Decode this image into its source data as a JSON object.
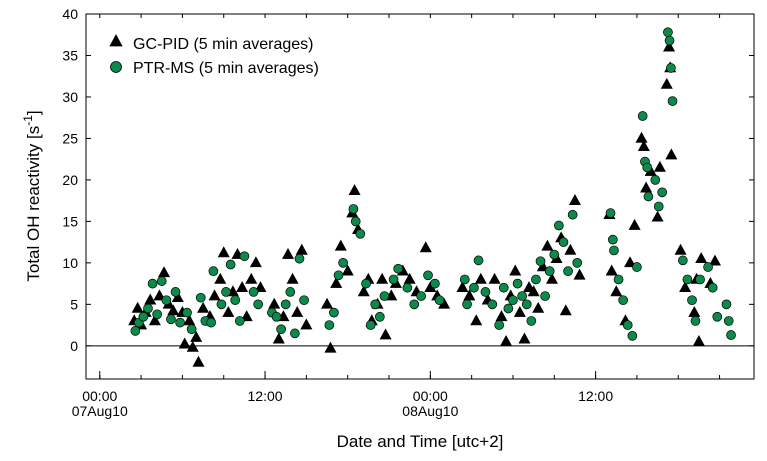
{
  "chart_data": {
    "type": "scatter",
    "xlabel": "Date and Time [utc+2]",
    "ylabel": "Total OH reactivity [s",
    "ylabel_sup": "-1",
    "ylabel_end": "]",
    "xlim": [
      "2010-08-06 23:00",
      "2010-08-08 23:30"
    ],
    "ylim": [
      -4,
      40
    ],
    "y_ticks": [
      0,
      5,
      10,
      15,
      20,
      25,
      30,
      35,
      40
    ],
    "x_ticks": [
      {
        "t": "2010-08-07 00:00",
        "label": "00:00",
        "sublabel": "07Aug10"
      },
      {
        "t": "2010-08-07 12:00",
        "label": "12:00",
        "sublabel": ""
      },
      {
        "t": "2010-08-08 00:00",
        "label": "00:00",
        "sublabel": "08Aug10"
      },
      {
        "t": "2010-08-08 12:00",
        "label": "12:00",
        "sublabel": ""
      }
    ],
    "zero_line": true,
    "grid": false,
    "legend_position": "top-left",
    "series": [
      {
        "name": "GC-PID (5 min averages)",
        "marker": "triangle",
        "color": "#000000",
        "points": [
          [
            "2010-08-07 02:30",
            3.0
          ],
          [
            "2010-08-07 02:45",
            4.5
          ],
          [
            "2010-08-07 03:00",
            2.5
          ],
          [
            "2010-08-07 03:20",
            4.0
          ],
          [
            "2010-08-07 03:40",
            5.5
          ],
          [
            "2010-08-07 04:00",
            3.0
          ],
          [
            "2010-08-07 04:20",
            6.0
          ],
          [
            "2010-08-07 04:40",
            8.8
          ],
          [
            "2010-08-07 05:00",
            5.0
          ],
          [
            "2010-08-07 05:20",
            4.2
          ],
          [
            "2010-08-07 05:40",
            5.8
          ],
          [
            "2010-08-07 06:00",
            4.0
          ],
          [
            "2010-08-07 06:10",
            0.2
          ],
          [
            "2010-08-07 06:30",
            3.0
          ],
          [
            "2010-08-07 06:45",
            -0.2
          ],
          [
            "2010-08-07 07:00",
            1.0
          ],
          [
            "2010-08-07 07:10",
            -2.0
          ],
          [
            "2010-08-07 07:30",
            4.5
          ],
          [
            "2010-08-07 08:00",
            3.5
          ],
          [
            "2010-08-07 08:20",
            6.0
          ],
          [
            "2010-08-07 08:45",
            8.0
          ],
          [
            "2010-08-07 09:00",
            11.2
          ],
          [
            "2010-08-07 09:20",
            4.0
          ],
          [
            "2010-08-07 09:40",
            6.5
          ],
          [
            "2010-08-07 10:00",
            11.0
          ],
          [
            "2010-08-07 10:20",
            7.0
          ],
          [
            "2010-08-07 10:40",
            3.5
          ],
          [
            "2010-08-07 11:00",
            8.0
          ],
          [
            "2010-08-07 11:20",
            10.0
          ],
          [
            "2010-08-07 11:40",
            7.0
          ],
          [
            "2010-08-07 12:40",
            5.0
          ],
          [
            "2010-08-07 13:00",
            0.8
          ],
          [
            "2010-08-07 13:20",
            3.5
          ],
          [
            "2010-08-07 13:40",
            11.0
          ],
          [
            "2010-08-07 14:00",
            8.0
          ],
          [
            "2010-08-07 14:20",
            4.0
          ],
          [
            "2010-08-07 14:40",
            11.5
          ],
          [
            "2010-08-07 15:00",
            2.5
          ],
          [
            "2010-08-07 16:30",
            5.0
          ],
          [
            "2010-08-07 16:45",
            -0.3
          ],
          [
            "2010-08-07 17:10",
            7.5
          ],
          [
            "2010-08-07 17:30",
            12.0
          ],
          [
            "2010-08-07 18:00",
            9.0
          ],
          [
            "2010-08-07 18:20",
            16.0
          ],
          [
            "2010-08-07 18:30",
            18.7
          ],
          [
            "2010-08-07 18:45",
            14.0
          ],
          [
            "2010-08-07 19:10",
            6.5
          ],
          [
            "2010-08-07 19:30",
            8.0
          ],
          [
            "2010-08-07 19:45",
            3.0
          ],
          [
            "2010-08-07 20:10",
            5.0
          ],
          [
            "2010-08-07 20:30",
            8.0
          ],
          [
            "2010-08-07 20:45",
            1.3
          ],
          [
            "2010-08-07 21:10",
            6.0
          ],
          [
            "2010-08-07 21:30",
            7.5
          ],
          [
            "2010-08-07 22:00",
            9.0
          ],
          [
            "2010-08-07 22:30",
            8.0
          ],
          [
            "2010-08-07 23:00",
            6.5
          ],
          [
            "2010-08-07 23:40",
            11.8
          ],
          [
            "2010-08-08 00:00",
            7.0
          ],
          [
            "2010-08-08 00:30",
            6.0
          ],
          [
            "2010-08-08 01:00",
            5.0
          ],
          [
            "2010-08-08 02:20",
            7.0
          ],
          [
            "2010-08-08 02:50",
            6.0
          ],
          [
            "2010-08-08 03:20",
            3.0
          ],
          [
            "2010-08-08 03:40",
            8.0
          ],
          [
            "2010-08-08 04:10",
            5.5
          ],
          [
            "2010-08-08 04:40",
            8.0
          ],
          [
            "2010-08-08 05:10",
            3.5
          ],
          [
            "2010-08-08 05:30",
            0.5
          ],
          [
            "2010-08-08 05:50",
            6.0
          ],
          [
            "2010-08-08 06:10",
            9.0
          ],
          [
            "2010-08-08 06:30",
            4.0
          ],
          [
            "2010-08-08 06:50",
            0.8
          ],
          [
            "2010-08-08 07:10",
            7.0
          ],
          [
            "2010-08-08 07:30",
            6.5
          ],
          [
            "2010-08-08 07:50",
            4.5
          ],
          [
            "2010-08-08 08:10",
            9.5
          ],
          [
            "2010-08-08 08:30",
            12.0
          ],
          [
            "2010-08-08 08:50",
            8.0
          ],
          [
            "2010-08-08 09:10",
            10.5
          ],
          [
            "2010-08-08 09:30",
            13.0
          ],
          [
            "2010-08-08 09:50",
            4.2
          ],
          [
            "2010-08-08 10:10",
            11.5
          ],
          [
            "2010-08-08 10:30",
            17.5
          ],
          [
            "2010-08-08 10:50",
            8.5
          ],
          [
            "2010-08-08 13:00",
            15.8
          ],
          [
            "2010-08-08 13:10",
            9.0
          ],
          [
            "2010-08-08 13:30",
            6.5
          ],
          [
            "2010-08-08 14:10",
            3.0
          ],
          [
            "2010-08-08 14:30",
            10.0
          ],
          [
            "2010-08-08 14:50",
            14.5
          ],
          [
            "2010-08-08 15:20",
            25.0
          ],
          [
            "2010-08-08 15:30",
            24.0
          ],
          [
            "2010-08-08 15:40",
            19.0
          ],
          [
            "2010-08-08 16:00",
            21.0
          ],
          [
            "2010-08-08 16:30",
            15.5
          ],
          [
            "2010-08-08 16:40",
            21.5
          ],
          [
            "2010-08-08 17:10",
            31.5
          ],
          [
            "2010-08-08 17:20",
            36.0
          ],
          [
            "2010-08-08 17:25",
            33.5
          ],
          [
            "2010-08-08 17:30",
            23.0
          ],
          [
            "2010-08-08 18:10",
            11.5
          ],
          [
            "2010-08-08 18:30",
            7.0
          ],
          [
            "2010-08-08 19:10",
            4.0
          ],
          [
            "2010-08-08 19:20",
            8.0
          ],
          [
            "2010-08-08 19:30",
            0.5
          ],
          [
            "2010-08-08 19:40",
            10.5
          ],
          [
            "2010-08-08 20:20",
            7.5
          ],
          [
            "2010-08-08 20:40",
            10.2
          ]
        ]
      },
      {
        "name": "PTR-MS (5 min averages)",
        "marker": "circle",
        "color": "#0b8a4a",
        "points": [
          [
            "2010-08-07 02:35",
            1.8
          ],
          [
            "2010-08-07 02:50",
            2.8
          ],
          [
            "2010-08-07 03:10",
            3.5
          ],
          [
            "2010-08-07 03:30",
            4.5
          ],
          [
            "2010-08-07 03:50",
            7.5
          ],
          [
            "2010-08-07 04:10",
            3.8
          ],
          [
            "2010-08-07 04:30",
            7.8
          ],
          [
            "2010-08-07 04:50",
            5.5
          ],
          [
            "2010-08-07 05:10",
            3.2
          ],
          [
            "2010-08-07 05:30",
            6.5
          ],
          [
            "2010-08-07 05:50",
            2.8
          ],
          [
            "2010-08-07 06:20",
            4.0
          ],
          [
            "2010-08-07 06:40",
            2.0
          ],
          [
            "2010-08-07 07:20",
            5.8
          ],
          [
            "2010-08-07 07:40",
            3.0
          ],
          [
            "2010-08-07 08:05",
            2.8
          ],
          [
            "2010-08-07 08:15",
            9.0
          ],
          [
            "2010-08-07 08:50",
            5.0
          ],
          [
            "2010-08-07 09:10",
            6.5
          ],
          [
            "2010-08-07 09:30",
            9.8
          ],
          [
            "2010-08-07 09:50",
            5.5
          ],
          [
            "2010-08-07 10:10",
            3.0
          ],
          [
            "2010-08-07 10:30",
            10.8
          ],
          [
            "2010-08-07 11:10",
            6.5
          ],
          [
            "2010-08-07 11:30",
            5.0
          ],
          [
            "2010-08-07 12:30",
            4.0
          ],
          [
            "2010-08-07 12:50",
            3.5
          ],
          [
            "2010-08-07 13:10",
            2.0
          ],
          [
            "2010-08-07 13:30",
            5.0
          ],
          [
            "2010-08-07 13:50",
            6.5
          ],
          [
            "2010-08-07 14:10",
            1.5
          ],
          [
            "2010-08-07 14:30",
            10.5
          ],
          [
            "2010-08-07 14:50",
            5.5
          ],
          [
            "2010-08-07 16:40",
            2.5
          ],
          [
            "2010-08-07 17:00",
            4.0
          ],
          [
            "2010-08-07 17:20",
            8.5
          ],
          [
            "2010-08-07 17:40",
            10.0
          ],
          [
            "2010-08-07 18:25",
            16.5
          ],
          [
            "2010-08-07 18:35",
            15.0
          ],
          [
            "2010-08-07 18:55",
            13.5
          ],
          [
            "2010-08-07 19:20",
            7.5
          ],
          [
            "2010-08-07 19:40",
            2.5
          ],
          [
            "2010-08-07 20:00",
            5.0
          ],
          [
            "2010-08-07 20:20",
            3.5
          ],
          [
            "2010-08-07 20:40",
            6.0
          ],
          [
            "2010-08-07 21:20",
            8.0
          ],
          [
            "2010-08-07 21:40",
            9.3
          ],
          [
            "2010-08-07 22:20",
            7.0
          ],
          [
            "2010-08-07 22:50",
            5.0
          ],
          [
            "2010-08-07 23:20",
            6.0
          ],
          [
            "2010-08-07 23:50",
            8.5
          ],
          [
            "2010-08-08 00:20",
            7.5
          ],
          [
            "2010-08-08 00:40",
            5.5
          ],
          [
            "2010-08-08 02:30",
            8.0
          ],
          [
            "2010-08-08 02:40",
            5.0
          ],
          [
            "2010-08-08 03:10",
            7.0
          ],
          [
            "2010-08-08 03:30",
            10.3
          ],
          [
            "2010-08-08 04:00",
            6.5
          ],
          [
            "2010-08-08 04:30",
            5.0
          ],
          [
            "2010-08-08 05:00",
            2.5
          ],
          [
            "2010-08-08 05:20",
            7.0
          ],
          [
            "2010-08-08 05:40",
            4.5
          ],
          [
            "2010-08-08 06:00",
            5.5
          ],
          [
            "2010-08-08 06:20",
            7.5
          ],
          [
            "2010-08-08 06:40",
            6.0
          ],
          [
            "2010-08-08 07:00",
            5.0
          ],
          [
            "2010-08-08 07:20",
            3.0
          ],
          [
            "2010-08-08 07:40",
            8.0
          ],
          [
            "2010-08-08 08:00",
            10.2
          ],
          [
            "2010-08-08 08:20",
            6.0
          ],
          [
            "2010-08-08 08:40",
            9.0
          ],
          [
            "2010-08-08 09:00",
            11.0
          ],
          [
            "2010-08-08 09:20",
            14.5
          ],
          [
            "2010-08-08 09:40",
            12.5
          ],
          [
            "2010-08-08 10:00",
            9.0
          ],
          [
            "2010-08-08 10:20",
            15.8
          ],
          [
            "2010-08-08 10:40",
            10.0
          ],
          [
            "2010-08-08 13:05",
            16.0
          ],
          [
            "2010-08-08 13:15",
            12.8
          ],
          [
            "2010-08-08 13:20",
            11.5
          ],
          [
            "2010-08-08 13:40",
            8.0
          ],
          [
            "2010-08-08 14:00",
            5.5
          ],
          [
            "2010-08-08 14:20",
            2.5
          ],
          [
            "2010-08-08 14:40",
            1.2
          ],
          [
            "2010-08-08 15:00",
            9.5
          ],
          [
            "2010-08-08 15:25",
            27.7
          ],
          [
            "2010-08-08 15:35",
            22.2
          ],
          [
            "2010-08-08 15:45",
            21.5
          ],
          [
            "2010-08-08 15:50",
            18.0
          ],
          [
            "2010-08-08 16:20",
            20.0
          ],
          [
            "2010-08-08 16:35",
            16.8
          ],
          [
            "2010-08-08 16:50",
            18.5
          ],
          [
            "2010-08-08 17:15",
            37.8
          ],
          [
            "2010-08-08 17:22",
            36.8
          ],
          [
            "2010-08-08 17:28",
            33.5
          ],
          [
            "2010-08-08 17:35",
            29.5
          ],
          [
            "2010-08-08 18:20",
            10.3
          ],
          [
            "2010-08-08 18:40",
            8.0
          ],
          [
            "2010-08-08 19:00",
            5.5
          ],
          [
            "2010-08-08 19:15",
            3.0
          ],
          [
            "2010-08-08 19:35",
            8.0
          ],
          [
            "2010-08-08 20:10",
            9.5
          ],
          [
            "2010-08-08 20:30",
            7.0
          ],
          [
            "2010-08-08 20:50",
            3.5
          ],
          [
            "2010-08-08 21:30",
            5.0
          ],
          [
            "2010-08-08 21:40",
            3.0
          ],
          [
            "2010-08-08 21:50",
            1.3
          ]
        ]
      }
    ]
  }
}
